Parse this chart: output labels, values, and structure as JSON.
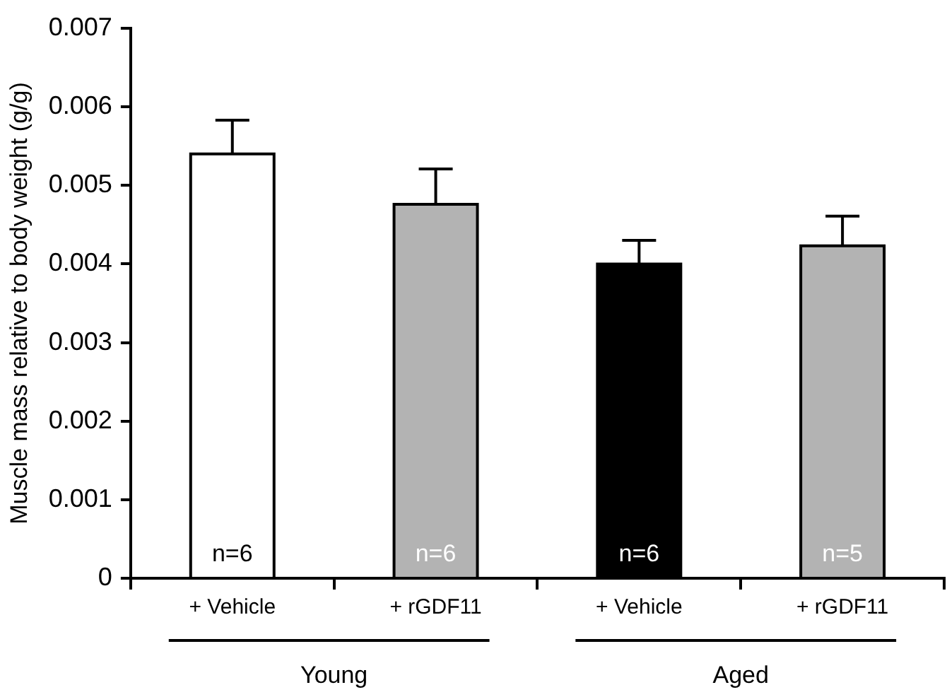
{
  "chart_data": {
    "type": "bar",
    "ylabel": "Muscle mass relative to body weight (g/g)",
    "categories": [
      "+ Vehicle",
      "+ rGDF11",
      "+ Vehicle",
      "+ rGDF11"
    ],
    "values": [
      0.0054,
      0.00476,
      0.004,
      0.00423
    ],
    "errors": [
      0.00043,
      0.00045,
      0.0003,
      0.00038
    ],
    "colors": [
      "#ffffff",
      "#b3b3b3",
      "#000000",
      "#b3b3b3"
    ],
    "ylim": [
      0,
      0.007
    ],
    "yticks": [
      0,
      0.001,
      0.002,
      0.003,
      0.004,
      0.005,
      0.006,
      0.007
    ],
    "annotations": [
      "n=6",
      "n=6",
      "n=6",
      "n=5",
      "Young",
      "Aged"
    ],
    "grid": false,
    "legend": false
  }
}
